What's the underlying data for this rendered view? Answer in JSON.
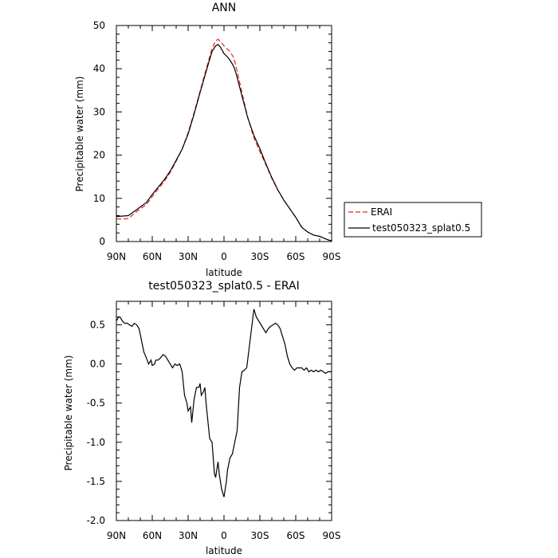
{
  "chart_data": [
    {
      "type": "line",
      "title": "ANN",
      "xlabel": "latitude",
      "ylabel": "Precipitable water (mm)",
      "xlim": [
        90,
        -90
      ],
      "ylim": [
        0,
        50
      ],
      "x_ticks": [
        90,
        60,
        30,
        0,
        -30,
        -60,
        -90
      ],
      "x_tick_labels": [
        "90N",
        "60N",
        "30N",
        "0",
        "30S",
        "60S",
        "90S"
      ],
      "y_ticks": [
        0,
        10,
        20,
        30,
        40,
        50
      ],
      "y_tick_labels": [
        "0",
        "10",
        "20",
        "30",
        "40",
        "50"
      ],
      "legend_position": "right",
      "series": [
        {
          "name": "ERAI",
          "color": "#e8201c",
          "dash": "dashed",
          "x": [
            90,
            80,
            75,
            70,
            65,
            60,
            55,
            50,
            45,
            40,
            35,
            30,
            25,
            20,
            15,
            10,
            7,
            5,
            3,
            0,
            -3,
            -5,
            -8,
            -10,
            -15,
            -20,
            -25,
            -30,
            -35,
            -40,
            -45,
            -50,
            -55,
            -60,
            -65,
            -70,
            -75,
            -80,
            -85,
            -88,
            -90
          ],
          "y": [
            5.2,
            5.3,
            6.5,
            7.6,
            8.5,
            10.4,
            12.2,
            13.9,
            16.0,
            18.6,
            21.4,
            25.2,
            29.8,
            34.8,
            39.8,
            44.7,
            46.4,
            46.8,
            46.3,
            45.3,
            44.5,
            44.0,
            42.6,
            40.6,
            34.5,
            28.6,
            24.0,
            20.8,
            17.8,
            14.6,
            11.9,
            9.6,
            7.6,
            5.6,
            3.3,
            2.2,
            1.5,
            1.2,
            0.6,
            0.3,
            0.2
          ]
        },
        {
          "name": "test050323_splat0.5",
          "color": "#000000",
          "dash": "solid",
          "x": [
            90,
            80,
            75,
            70,
            65,
            60,
            55,
            50,
            45,
            40,
            35,
            30,
            25,
            20,
            15,
            10,
            7,
            5,
            3,
            0,
            -3,
            -5,
            -8,
            -10,
            -15,
            -20,
            -25,
            -30,
            -35,
            -40,
            -45,
            -50,
            -55,
            -60,
            -65,
            -70,
            -75,
            -80,
            -85,
            -88,
            -90
          ],
          "y": [
            5.8,
            6.0,
            7.0,
            8.0,
            9.0,
            10.9,
            12.6,
            14.3,
            16.3,
            18.8,
            21.4,
            24.9,
            29.5,
            34.5,
            39.3,
            44.0,
            45.3,
            45.6,
            45.0,
            43.5,
            42.7,
            42.0,
            40.6,
            39.0,
            33.7,
            28.5,
            24.6,
            21.5,
            18.0,
            14.8,
            12.0,
            9.6,
            7.6,
            5.6,
            3.3,
            2.2,
            1.5,
            1.2,
            0.6,
            0.3,
            0.2
          ]
        }
      ]
    },
    {
      "type": "line",
      "title": "test050323_splat0.5 - ERAI",
      "xlabel": "latitude",
      "ylabel": "Precipitable water (mm)",
      "xlim": [
        90,
        -90
      ],
      "ylim": [
        -2.0,
        0.8
      ],
      "x_ticks": [
        90,
        60,
        30,
        0,
        -30,
        -60,
        -90
      ],
      "x_tick_labels": [
        "90N",
        "60N",
        "30N",
        "0",
        "30S",
        "60S",
        "90S"
      ],
      "y_ticks": [
        -2.0,
        -1.5,
        -1.0,
        -0.5,
        0.0,
        0.5
      ],
      "y_tick_labels": [
        "-2.0",
        "-1.5",
        "-1.0",
        "-0.5",
        "0.0",
        "0.5"
      ],
      "series": [
        {
          "name": "",
          "color": "#000000",
          "dash": "solid",
          "x": [
            90,
            88,
            87,
            85,
            83,
            81,
            79,
            77,
            75,
            73,
            71,
            69,
            67,
            65,
            63,
            61,
            60,
            58,
            57,
            55,
            53,
            51,
            49,
            47,
            45,
            43,
            41,
            39,
            37,
            35,
            33,
            31,
            30,
            28,
            27,
            25,
            23,
            22,
            21,
            20,
            19,
            17,
            16,
            15,
            13,
            12,
            10,
            9,
            8,
            7,
            6,
            5,
            4,
            3,
            2,
            1,
            0,
            -1,
            -2,
            -3,
            -5,
            -7,
            -9,
            -11,
            -13,
            -15,
            -17,
            -19,
            -21,
            -23,
            -25,
            -27,
            -29,
            -31,
            -33,
            -35,
            -37,
            -39,
            -41,
            -43,
            -45,
            -47,
            -49,
            -51,
            -53,
            -55,
            -57,
            -59,
            -61,
            -63,
            -65,
            -67,
            -69,
            -71,
            -73,
            -75,
            -77,
            -79,
            -81,
            -83,
            -85,
            -87,
            -90
          ],
          "y": [
            0.55,
            0.6,
            0.6,
            0.55,
            0.52,
            0.52,
            0.5,
            0.48,
            0.52,
            0.5,
            0.45,
            0.3,
            0.15,
            0.08,
            0.0,
            0.05,
            -0.02,
            0.0,
            0.05,
            0.05,
            0.08,
            0.12,
            0.1,
            0.05,
            0.0,
            -0.05,
            0.0,
            -0.02,
            0.0,
            -0.1,
            -0.4,
            -0.5,
            -0.6,
            -0.55,
            -0.75,
            -0.45,
            -0.3,
            -0.3,
            -0.3,
            -0.25,
            -0.4,
            -0.35,
            -0.3,
            -0.5,
            -0.8,
            -0.95,
            -1.0,
            -1.2,
            -1.4,
            -1.45,
            -1.35,
            -1.25,
            -1.4,
            -1.5,
            -1.6,
            -1.65,
            -1.7,
            -1.6,
            -1.5,
            -1.35,
            -1.2,
            -1.15,
            -1.0,
            -0.85,
            -0.3,
            -0.1,
            -0.08,
            -0.05,
            0.2,
            0.45,
            0.7,
            0.6,
            0.55,
            0.5,
            0.45,
            0.4,
            0.45,
            0.48,
            0.5,
            0.52,
            0.5,
            0.45,
            0.35,
            0.25,
            0.1,
            0.0,
            -0.05,
            -0.08,
            -0.05,
            -0.05,
            -0.05,
            -0.08,
            -0.05,
            -0.1,
            -0.08,
            -0.1,
            -0.08,
            -0.1,
            -0.08,
            -0.1,
            -0.12,
            -0.1,
            -0.1
          ]
        }
      ]
    }
  ]
}
